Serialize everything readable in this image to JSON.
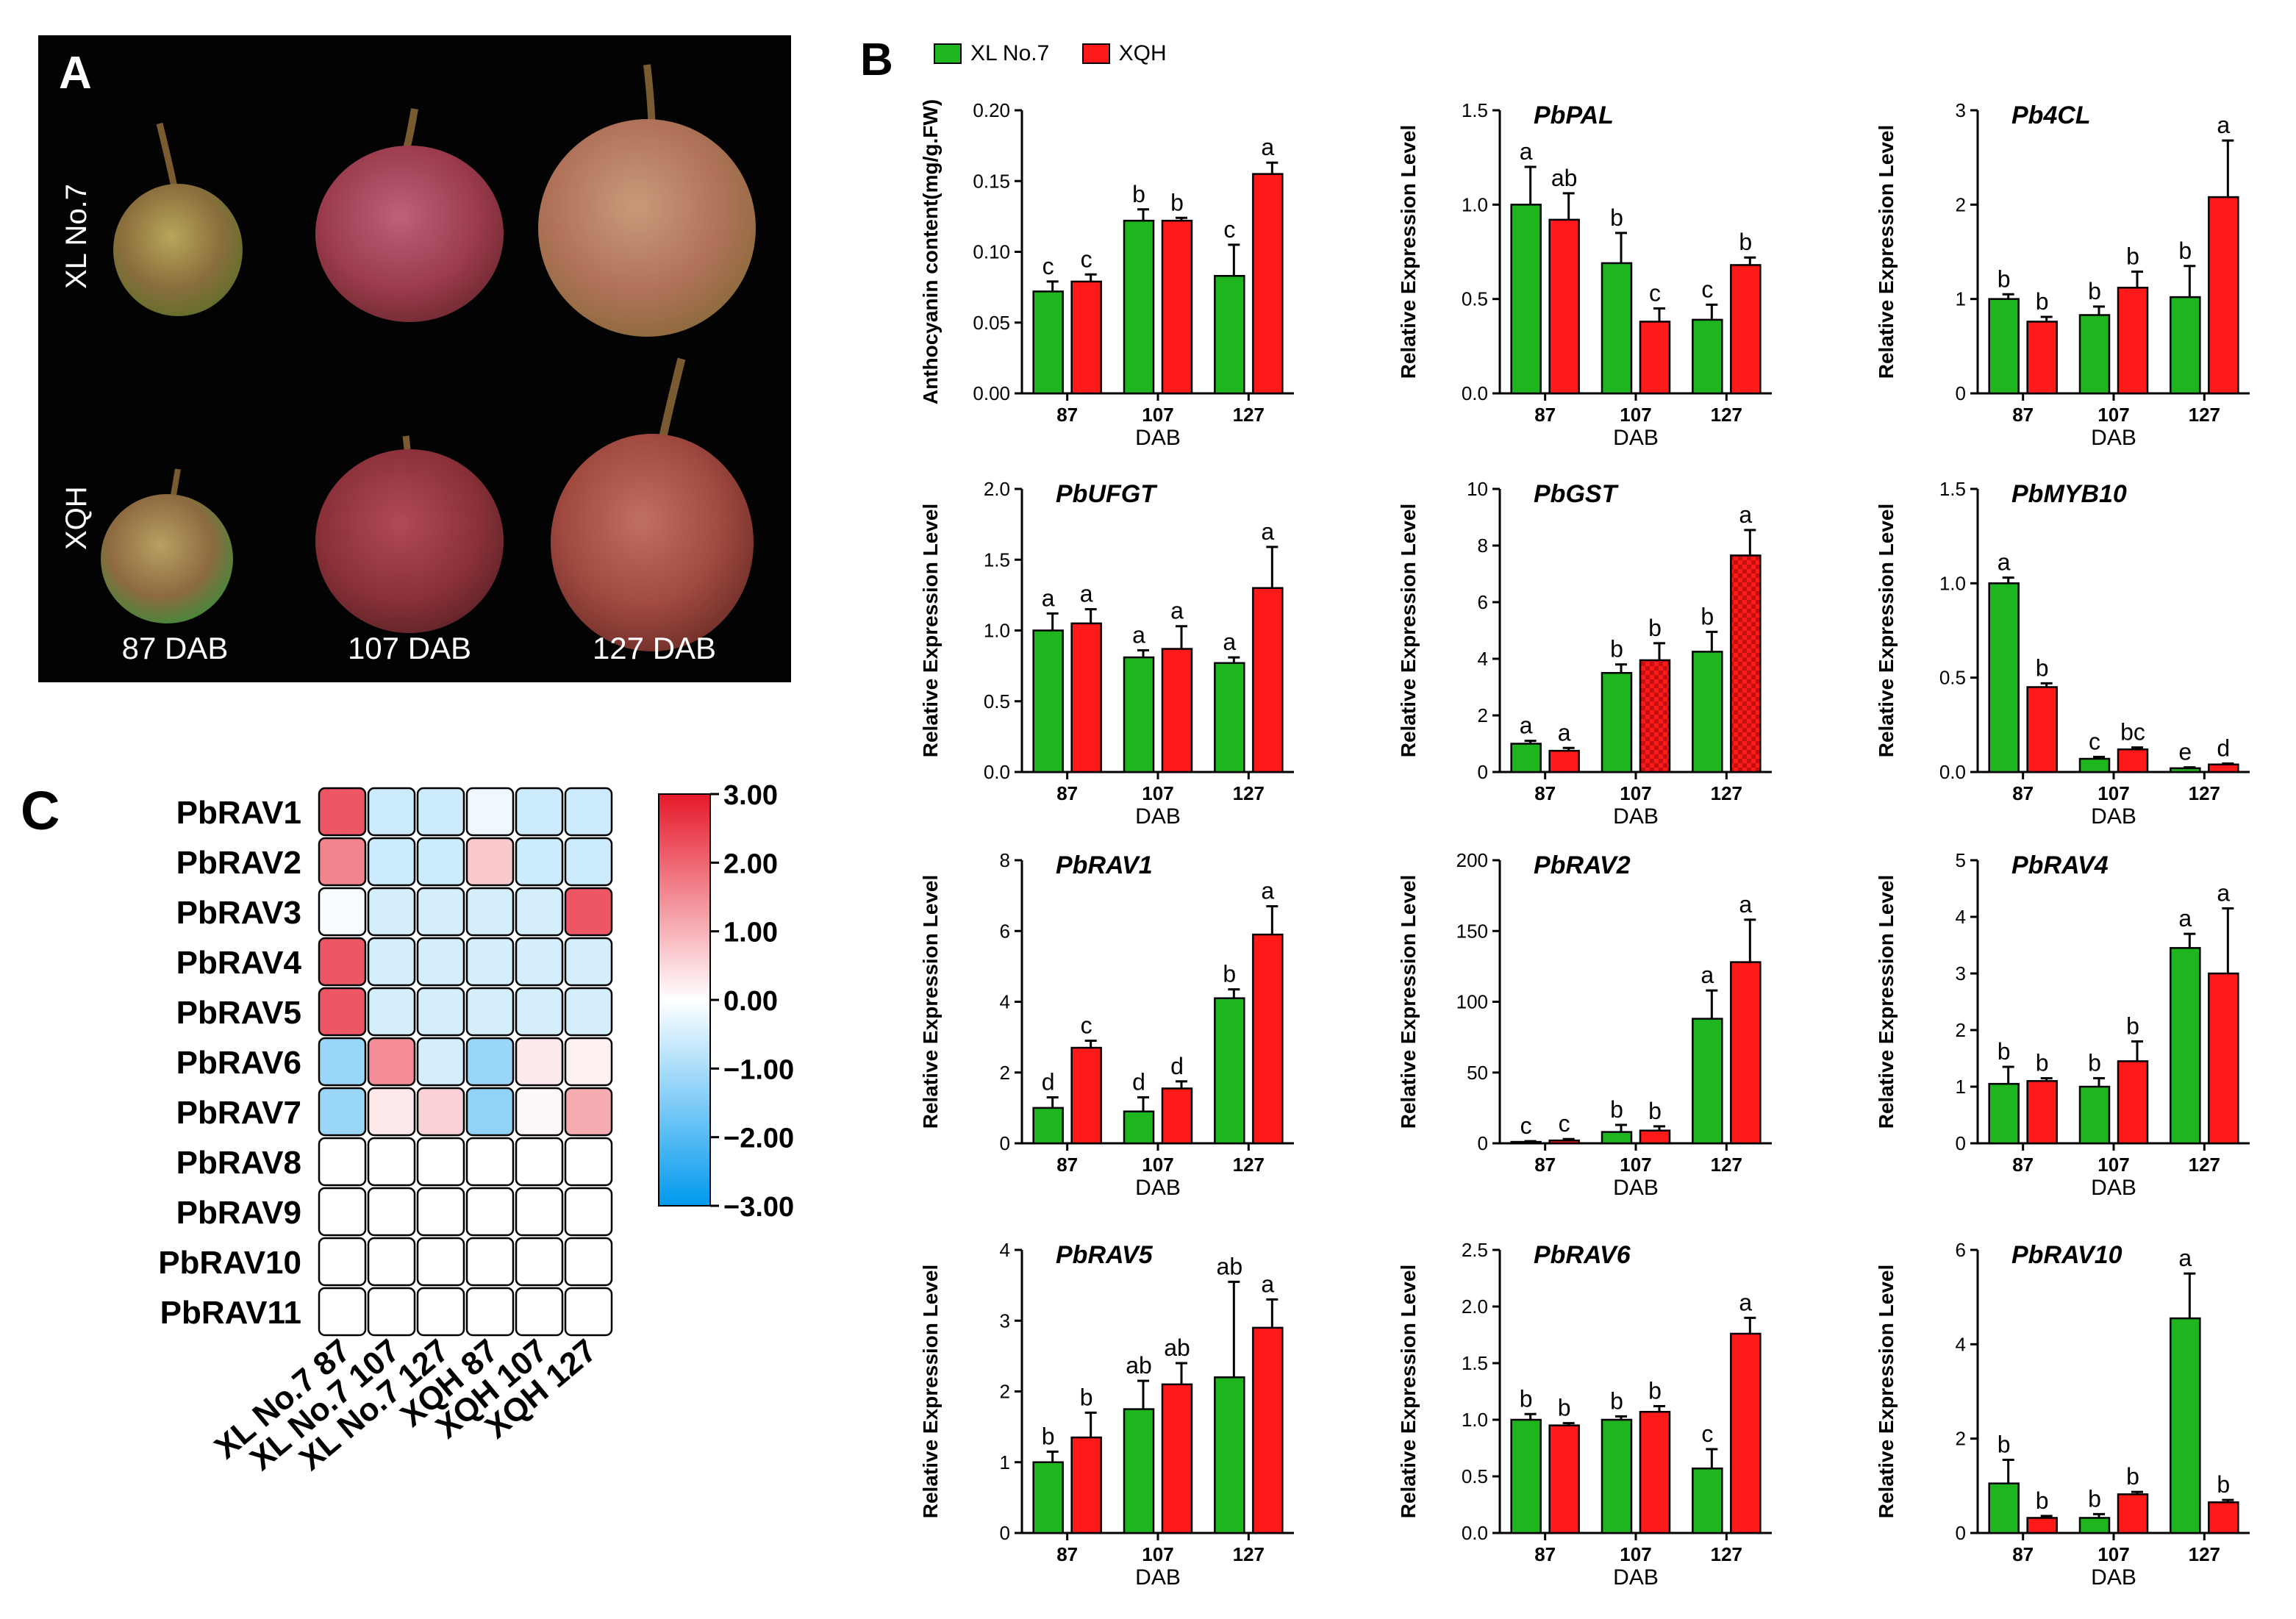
{
  "panel_a": {
    "letter": "A",
    "row_labels": [
      "XL No.7",
      "XQH"
    ],
    "stage_labels": [
      "87 DAB",
      "107 DAB",
      "127 DAB"
    ]
  },
  "panel_b": {
    "letter": "B"
  },
  "panel_c": {
    "letter": "C"
  },
  "legend": {
    "series": [
      {
        "name": "XL No.7",
        "color": "#1fb51f"
      },
      {
        "name": "XQH",
        "color": "#ff1a1a"
      }
    ]
  },
  "chart_data": [
    {
      "type": "bar",
      "title": "",
      "ylabel": "Anthocyanin content(mg/g.FW)",
      "xlabel": "DAB",
      "categories": [
        "87",
        "107",
        "127"
      ],
      "ylim": [
        0,
        0.2
      ],
      "yticks": [
        "0.00",
        "0.05",
        "0.10",
        "0.15",
        "0.20"
      ],
      "series": [
        {
          "name": "XL No.7",
          "values": [
            0.072,
            0.122,
            0.083
          ],
          "errors": [
            0.007,
            0.008,
            0.022
          ],
          "letters": [
            "c",
            "b",
            "c"
          ]
        },
        {
          "name": "XQH",
          "values": [
            0.079,
            0.122,
            0.155
          ],
          "errors": [
            0.005,
            0.002,
            0.008
          ],
          "letters": [
            "c",
            "b",
            "a"
          ]
        }
      ]
    },
    {
      "type": "bar",
      "title": "PbPAL",
      "ylabel": "Relative Expression Level",
      "xlabel": "DAB",
      "categories": [
        "87",
        "107",
        "127"
      ],
      "ylim": [
        0,
        1.5
      ],
      "yticks": [
        "0.0",
        "0.5",
        "1.0",
        "1.5"
      ],
      "series": [
        {
          "name": "XL No.7",
          "values": [
            1.0,
            0.69,
            0.39
          ],
          "errors": [
            0.2,
            0.16,
            0.08
          ],
          "letters": [
            "a",
            "b",
            "c"
          ]
        },
        {
          "name": "XQH",
          "values": [
            0.92,
            0.38,
            0.68
          ],
          "errors": [
            0.14,
            0.07,
            0.04
          ],
          "letters": [
            "ab",
            "c",
            "b"
          ]
        }
      ]
    },
    {
      "type": "bar",
      "title": "Pb4CL",
      "ylabel": "Relative Expression Level",
      "xlabel": "DAB",
      "categories": [
        "87",
        "107",
        "127"
      ],
      "ylim": [
        0,
        3
      ],
      "yticks": [
        "0",
        "1",
        "2",
        "3"
      ],
      "series": [
        {
          "name": "XL No.7",
          "values": [
            1.0,
            0.83,
            1.02
          ],
          "errors": [
            0.05,
            0.09,
            0.33
          ],
          "letters": [
            "b",
            "b",
            "b"
          ]
        },
        {
          "name": "XQH",
          "values": [
            0.76,
            1.12,
            2.08
          ],
          "errors": [
            0.05,
            0.17,
            0.6
          ],
          "letters": [
            "b",
            "b",
            "a"
          ]
        }
      ]
    },
    {
      "type": "bar",
      "title": "PbUFGT",
      "ylabel": "Relative Expression Level",
      "xlabel": "DAB",
      "categories": [
        "87",
        "107",
        "127"
      ],
      "ylim": [
        0,
        2
      ],
      "yticks": [
        "0.0",
        "0.5",
        "1.0",
        "1.5",
        "2.0"
      ],
      "series": [
        {
          "name": "XL No.7",
          "values": [
            1.0,
            0.81,
            0.77
          ],
          "errors": [
            0.12,
            0.05,
            0.04
          ],
          "letters": [
            "a",
            "a",
            "a"
          ]
        },
        {
          "name": "XQH",
          "values": [
            1.05,
            0.87,
            1.3
          ],
          "errors": [
            0.1,
            0.16,
            0.29
          ],
          "letters": [
            "a",
            "a",
            "a"
          ]
        }
      ]
    },
    {
      "type": "bar",
      "title": "PbGST",
      "ylabel": "Relative Expression Level",
      "xlabel": "DAB",
      "categories": [
        "87",
        "107",
        "127"
      ],
      "ylim": [
        0,
        10
      ],
      "yticks": [
        "0",
        "2",
        "4",
        "6",
        "8",
        "10"
      ],
      "series": [
        {
          "name": "XL No.7",
          "values": [
            1.0,
            3.5,
            4.25
          ],
          "errors": [
            0.1,
            0.3,
            0.7
          ],
          "letters": [
            "a",
            "b",
            "b"
          ]
        },
        {
          "name": "XQH",
          "values": [
            0.75,
            3.95,
            7.65
          ],
          "errors": [
            0.1,
            0.6,
            0.9
          ],
          "letters": [
            "a",
            "b",
            "a"
          ]
        }
      ]
    },
    {
      "type": "bar",
      "title": "PbMYB10",
      "ylabel": "Relative Expression Level",
      "xlabel": "DAB",
      "categories": [
        "87",
        "107",
        "127"
      ],
      "ylim": [
        0,
        1.5
      ],
      "yticks": [
        "0.0",
        "0.5",
        "1.0",
        "1.5"
      ],
      "series": [
        {
          "name": "XL No.7",
          "values": [
            1.0,
            0.07,
            0.02
          ],
          "errors": [
            0.03,
            0.01,
            0.005
          ],
          "letters": [
            "a",
            "c",
            "e"
          ]
        },
        {
          "name": "XQH",
          "values": [
            0.45,
            0.12,
            0.04
          ],
          "errors": [
            0.02,
            0.01,
            0.005
          ],
          "letters": [
            "b",
            "bc",
            "d"
          ]
        }
      ]
    },
    {
      "type": "bar",
      "title": "PbRAV1",
      "ylabel": "Relative Expression Level",
      "xlabel": "DAB",
      "categories": [
        "87",
        "107",
        "127"
      ],
      "ylim": [
        0,
        8
      ],
      "yticks": [
        "0",
        "2",
        "4",
        "6",
        "8"
      ],
      "series": [
        {
          "name": "XL No.7",
          "values": [
            1.0,
            0.9,
            4.1
          ],
          "errors": [
            0.3,
            0.4,
            0.25
          ],
          "letters": [
            "d",
            "d",
            "b"
          ]
        },
        {
          "name": "XQH",
          "values": [
            2.7,
            1.55,
            5.9
          ],
          "errors": [
            0.2,
            0.2,
            0.8
          ],
          "letters": [
            "c",
            "d",
            "a"
          ]
        }
      ]
    },
    {
      "type": "bar",
      "title": "PbRAV2",
      "ylabel": "Relative Expression Level",
      "xlabel": "DAB",
      "categories": [
        "87",
        "107",
        "127"
      ],
      "ylim": [
        0,
        200
      ],
      "yticks": [
        "0",
        "50",
        "100",
        "150",
        "200"
      ],
      "series": [
        {
          "name": "XL No.7",
          "values": [
            1,
            8,
            88
          ],
          "errors": [
            0.5,
            5,
            20
          ],
          "letters": [
            "c",
            "b",
            "a"
          ]
        },
        {
          "name": "XQH",
          "values": [
            2,
            9,
            128
          ],
          "errors": [
            1,
            3,
            30
          ],
          "letters": [
            "c",
            "b",
            "a"
          ]
        }
      ]
    },
    {
      "type": "bar",
      "title": "PbRAV4",
      "ylabel": "Relative Expression Level",
      "xlabel": "DAB",
      "categories": [
        "87",
        "107",
        "127"
      ],
      "ylim": [
        0,
        5
      ],
      "yticks": [
        "0",
        "1",
        "2",
        "3",
        "4",
        "5"
      ],
      "series": [
        {
          "name": "XL No.7",
          "values": [
            1.05,
            1.0,
            3.45
          ],
          "errors": [
            0.3,
            0.15,
            0.25
          ],
          "letters": [
            "b",
            "b",
            "a"
          ]
        },
        {
          "name": "XQH",
          "values": [
            1.1,
            1.45,
            3.0
          ],
          "errors": [
            0.05,
            0.35,
            1.15
          ],
          "letters": [
            "b",
            "b",
            "a"
          ]
        }
      ]
    },
    {
      "type": "bar",
      "title": "PbRAV5",
      "ylabel": "Relative Expression Level",
      "xlabel": "DAB",
      "categories": [
        "87",
        "107",
        "127"
      ],
      "ylim": [
        0,
        4
      ],
      "yticks": [
        "0",
        "1",
        "2",
        "3",
        "4"
      ],
      "series": [
        {
          "name": "XL No.7",
          "values": [
            1.0,
            1.75,
            2.2
          ],
          "errors": [
            0.15,
            0.4,
            1.35
          ],
          "letters": [
            "b",
            "ab",
            "ab"
          ]
        },
        {
          "name": "XQH",
          "values": [
            1.35,
            2.1,
            2.9
          ],
          "errors": [
            0.35,
            0.3,
            0.4
          ],
          "letters": [
            "b",
            "ab",
            "a"
          ]
        }
      ]
    },
    {
      "type": "bar",
      "title": "PbRAV6",
      "ylabel": "Relative Expression Level",
      "xlabel": "DAB",
      "categories": [
        "87",
        "107",
        "127"
      ],
      "ylim": [
        0,
        2.5
      ],
      "yticks": [
        "0.0",
        "0.5",
        "1.0",
        "1.5",
        "2.0",
        "2.5"
      ],
      "series": [
        {
          "name": "XL No.7",
          "values": [
            1.0,
            1.0,
            0.57
          ],
          "errors": [
            0.05,
            0.03,
            0.17
          ],
          "letters": [
            "b",
            "b",
            "c"
          ]
        },
        {
          "name": "XQH",
          "values": [
            0.95,
            1.07,
            1.76
          ],
          "errors": [
            0.02,
            0.05,
            0.14
          ],
          "letters": [
            "b",
            "b",
            "a"
          ]
        }
      ]
    },
    {
      "type": "bar",
      "title": "PbRAV10",
      "ylabel": "Relative Expression Level",
      "xlabel": "DAB",
      "categories": [
        "87",
        "107",
        "127"
      ],
      "ylim": [
        0,
        6
      ],
      "yticks": [
        "0",
        "2",
        "4",
        "6"
      ],
      "series": [
        {
          "name": "XL No.7",
          "values": [
            1.05,
            0.32,
            4.55
          ],
          "errors": [
            0.5,
            0.08,
            0.95
          ],
          "letters": [
            "b",
            "b",
            "a"
          ]
        },
        {
          "name": "XQH",
          "values": [
            0.32,
            0.82,
            0.65
          ],
          "errors": [
            0.04,
            0.05,
            0.05
          ],
          "letters": [
            "b",
            "b",
            "b"
          ]
        }
      ]
    },
    {
      "type": "heatmap",
      "title": "",
      "rows": [
        "PbRAV1",
        "PbRAV2",
        "PbRAV3",
        "PbRAV4",
        "PbRAV5",
        "PbRAV6",
        "PbRAV7",
        "PbRAV8",
        "PbRAV9",
        "PbRAV10",
        "PbRAV11"
      ],
      "columns": [
        "XL No.7 87",
        "XL No.7 107",
        "XL No.7 127",
        "XQH 87",
        "XQH 107",
        "XQH 127"
      ],
      "values": [
        [
          2.2,
          -0.6,
          -0.6,
          -0.2,
          -0.6,
          -0.6
        ],
        [
          1.6,
          -0.6,
          -0.6,
          0.7,
          -0.6,
          -0.6
        ],
        [
          -0.1,
          -0.5,
          -0.5,
          -0.5,
          -0.5,
          2.2
        ],
        [
          2.2,
          -0.5,
          -0.5,
          -0.5,
          -0.5,
          -0.5
        ],
        [
          2.2,
          -0.5,
          -0.5,
          -0.5,
          -0.5,
          -0.5
        ],
        [
          -1.2,
          1.5,
          -0.5,
          -1.2,
          0.3,
          0.2
        ],
        [
          -1.2,
          0.3,
          0.6,
          -1.3,
          0.1,
          1.1
        ],
        [
          null,
          null,
          null,
          null,
          null,
          null
        ],
        [
          null,
          null,
          null,
          null,
          null,
          null
        ],
        [
          null,
          null,
          null,
          null,
          null,
          null
        ],
        [
          null,
          null,
          null,
          null,
          null,
          null
        ]
      ],
      "colorbar": {
        "ticks": [
          "3.00",
          "2.00",
          "1.00",
          "0.00",
          "−1.00",
          "−2.00",
          "−3.00"
        ],
        "range": [
          -3,
          3
        ],
        "colors": [
          "#0099ee",
          "#ffffff",
          "#e6192b"
        ]
      }
    }
  ]
}
